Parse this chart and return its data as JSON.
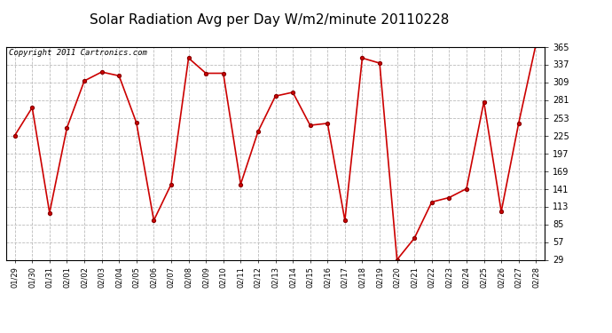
{
  "title": "Solar Radiation Avg per Day W/m2/minute 20110228",
  "copyright": "Copyright 2011 Cartronics.com",
  "dates": [
    "01/29",
    "01/30",
    "01/31",
    "02/01",
    "02/02",
    "02/03",
    "02/04",
    "02/05",
    "02/06",
    "02/07",
    "02/08",
    "02/09",
    "02/10",
    "02/11",
    "02/12",
    "02/13",
    "02/14",
    "02/15",
    "02/16",
    "02/17",
    "02/18",
    "02/19",
    "02/20",
    "02/21",
    "02/22",
    "02/23",
    "02/24",
    "02/25",
    "02/26",
    "02/27",
    "02/28"
  ],
  "values": [
    225,
    269,
    103,
    237,
    311,
    325,
    319,
    245,
    91,
    148,
    347,
    323,
    323,
    148,
    231,
    287,
    293,
    241,
    244,
    91,
    347,
    339,
    29,
    63,
    120,
    127,
    141,
    278,
    105,
    244,
    369
  ],
  "line_color": "#cc0000",
  "marker_color": "#cc0000",
  "bg_color": "#ffffff",
  "grid_color": "#bbbbbb",
  "yticks": [
    29.0,
    57.0,
    85.0,
    113.0,
    141.0,
    169.0,
    197.0,
    225.0,
    253.0,
    281.0,
    309.0,
    337.0,
    365.0
  ],
  "ymin": 29.0,
  "ymax": 365.0,
  "title_fontsize": 11,
  "copyright_fontsize": 6.5
}
